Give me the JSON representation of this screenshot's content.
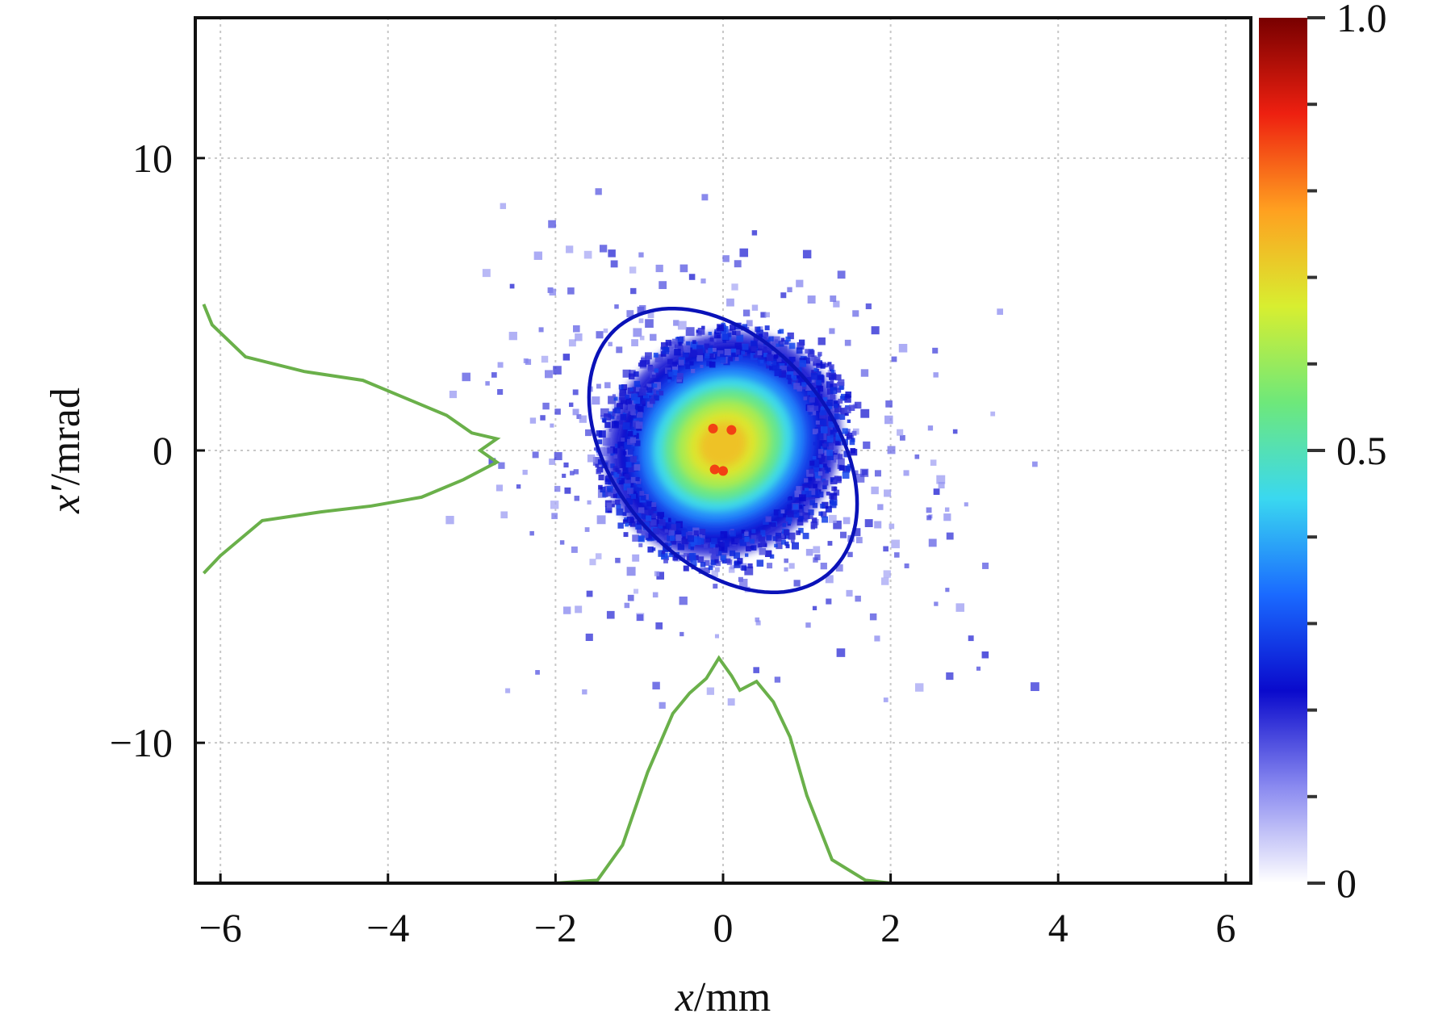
{
  "chart_data": {
    "type": "heatmap",
    "title": "",
    "xlabel": {
      "var": "x",
      "unit": "/mm"
    },
    "ylabel": {
      "var": "x′",
      "unit": "/mrad"
    },
    "xlim": [
      -6.3,
      6.3
    ],
    "ylim": [
      -14.8,
      14.8
    ],
    "xticks": [
      -6,
      -4,
      -2,
      0,
      2,
      4,
      6
    ],
    "yticks": [
      -10,
      0,
      10
    ],
    "xtick_labels": [
      "−6",
      "−4",
      "−2",
      "0",
      "2",
      "4",
      "6"
    ],
    "ytick_labels": [
      "−10",
      "0",
      "10"
    ],
    "grid": true,
    "colorbar": {
      "range": [
        0,
        1.0
      ],
      "tick_labels": [
        "0",
        "0.5",
        "1.0"
      ],
      "tick_values": [
        0,
        0.5,
        1.0
      ],
      "minor_ticks": 10,
      "colormap": [
        "#ffffff",
        "#8a8af0",
        "#0a0acc",
        "#1a6aff",
        "#3ad8f0",
        "#6ee87a",
        "#d8ee30",
        "#ffa020",
        "#ee2010",
        "#780000"
      ]
    },
    "distribution": {
      "center": [
        0.0,
        0.3
      ],
      "core_sigma_x": 0.5,
      "core_sigma_y": 1.7,
      "halo_extent_x": [
        -3.5,
        4.0
      ],
      "halo_extent_y": [
        -9.0,
        9.0
      ],
      "peak_value": 1.0
    },
    "emittance_ellipse": {
      "center": [
        0.0,
        0.0
      ],
      "semi_axis_x": 1.6,
      "semi_axis_y": 4.5,
      "correlation": -0.45,
      "color": "#0a12b8"
    },
    "x_projection": {
      "color": "#6ab04a",
      "x": [
        -6.2,
        -3.0,
        -2.0,
        -1.5,
        -1.2,
        -0.9,
        -0.6,
        -0.4,
        -0.2,
        -0.05,
        0.1,
        0.2,
        0.4,
        0.6,
        0.8,
        1.0,
        1.3,
        1.7,
        2.0,
        3.0
      ],
      "y": [
        -14.8,
        -14.8,
        -14.8,
        -14.7,
        -13.5,
        -11.0,
        -9.0,
        -8.3,
        -7.8,
        -7.1,
        -7.7,
        -8.2,
        -7.9,
        -8.6,
        -9.8,
        -11.8,
        -14.0,
        -14.7,
        -14.8,
        -14.8
      ]
    },
    "y_projection": {
      "color": "#6ab04a",
      "x": [
        -6.2,
        -6.1,
        -5.7,
        -5.0,
        -4.3,
        -3.8,
        -3.3,
        -3.0,
        -2.7,
        -2.9,
        -2.7,
        -3.1,
        -3.6,
        -4.2,
        -4.8,
        -5.5,
        -6.0,
        -6.2
      ],
      "y": [
        5.0,
        4.3,
        3.2,
        2.7,
        2.4,
        1.8,
        1.2,
        0.6,
        0.4,
        0.0,
        -0.4,
        -1.0,
        -1.6,
        -1.9,
        -2.1,
        -2.4,
        -3.6,
        -4.2
      ]
    }
  }
}
